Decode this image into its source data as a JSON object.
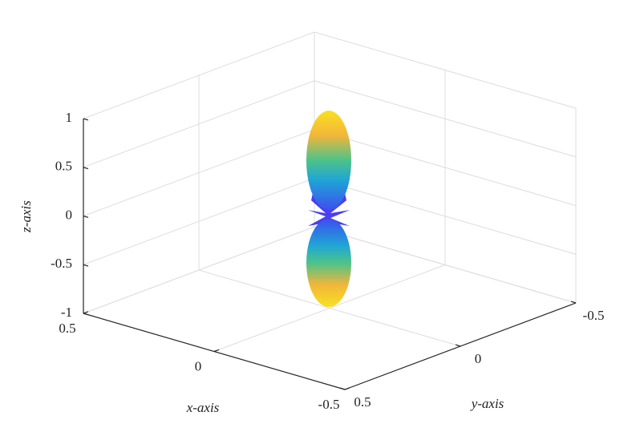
{
  "chart_data": {
    "type": "surface3d",
    "xlabel": "x-axis",
    "ylabel": "y-axis",
    "zlabel": "z-axis",
    "xlim": [
      -0.5,
      0.5
    ],
    "ylim": [
      -0.5,
      0.5
    ],
    "zlim": [
      -1,
      1
    ],
    "xticks": [
      -0.5,
      0,
      0.5
    ],
    "yticks": [
      -0.5,
      0,
      0.5
    ],
    "zticks": [
      -1,
      -0.5,
      0,
      0.5,
      1
    ],
    "grid": true
  }
}
